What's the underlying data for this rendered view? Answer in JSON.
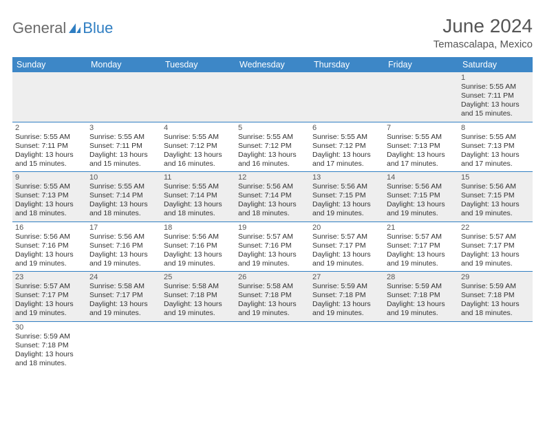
{
  "brand": {
    "name_a": "General",
    "name_b": "Blue",
    "accent": "#2f7ec2",
    "muted": "#6a6a6a"
  },
  "title": "June 2024",
  "subtitle": "Temascalapa, Mexico",
  "header_bg": "#3d87c7",
  "header_fg": "#ffffff",
  "row_even_bg": "#eeeeee",
  "row_odd_bg": "#ffffff",
  "divider_color": "#2f7ec2",
  "day_headers": [
    "Sunday",
    "Monday",
    "Tuesday",
    "Wednesday",
    "Thursday",
    "Friday",
    "Saturday"
  ],
  "weeks": [
    [
      null,
      null,
      null,
      null,
      null,
      null,
      {
        "n": 1,
        "sr": "5:55 AM",
        "ss": "7:11 PM",
        "dl": "13 hours and 15 minutes."
      }
    ],
    [
      {
        "n": 2,
        "sr": "5:55 AM",
        "ss": "7:11 PM",
        "dl": "13 hours and 15 minutes."
      },
      {
        "n": 3,
        "sr": "5:55 AM",
        "ss": "7:11 PM",
        "dl": "13 hours and 15 minutes."
      },
      {
        "n": 4,
        "sr": "5:55 AM",
        "ss": "7:12 PM",
        "dl": "13 hours and 16 minutes."
      },
      {
        "n": 5,
        "sr": "5:55 AM",
        "ss": "7:12 PM",
        "dl": "13 hours and 16 minutes."
      },
      {
        "n": 6,
        "sr": "5:55 AM",
        "ss": "7:12 PM",
        "dl": "13 hours and 17 minutes."
      },
      {
        "n": 7,
        "sr": "5:55 AM",
        "ss": "7:13 PM",
        "dl": "13 hours and 17 minutes."
      },
      {
        "n": 8,
        "sr": "5:55 AM",
        "ss": "7:13 PM",
        "dl": "13 hours and 17 minutes."
      }
    ],
    [
      {
        "n": 9,
        "sr": "5:55 AM",
        "ss": "7:13 PM",
        "dl": "13 hours and 18 minutes."
      },
      {
        "n": 10,
        "sr": "5:55 AM",
        "ss": "7:14 PM",
        "dl": "13 hours and 18 minutes."
      },
      {
        "n": 11,
        "sr": "5:55 AM",
        "ss": "7:14 PM",
        "dl": "13 hours and 18 minutes."
      },
      {
        "n": 12,
        "sr": "5:56 AM",
        "ss": "7:14 PM",
        "dl": "13 hours and 18 minutes."
      },
      {
        "n": 13,
        "sr": "5:56 AM",
        "ss": "7:15 PM",
        "dl": "13 hours and 19 minutes."
      },
      {
        "n": 14,
        "sr": "5:56 AM",
        "ss": "7:15 PM",
        "dl": "13 hours and 19 minutes."
      },
      {
        "n": 15,
        "sr": "5:56 AM",
        "ss": "7:15 PM",
        "dl": "13 hours and 19 minutes."
      }
    ],
    [
      {
        "n": 16,
        "sr": "5:56 AM",
        "ss": "7:16 PM",
        "dl": "13 hours and 19 minutes."
      },
      {
        "n": 17,
        "sr": "5:56 AM",
        "ss": "7:16 PM",
        "dl": "13 hours and 19 minutes."
      },
      {
        "n": 18,
        "sr": "5:56 AM",
        "ss": "7:16 PM",
        "dl": "13 hours and 19 minutes."
      },
      {
        "n": 19,
        "sr": "5:57 AM",
        "ss": "7:16 PM",
        "dl": "13 hours and 19 minutes."
      },
      {
        "n": 20,
        "sr": "5:57 AM",
        "ss": "7:17 PM",
        "dl": "13 hours and 19 minutes."
      },
      {
        "n": 21,
        "sr": "5:57 AM",
        "ss": "7:17 PM",
        "dl": "13 hours and 19 minutes."
      },
      {
        "n": 22,
        "sr": "5:57 AM",
        "ss": "7:17 PM",
        "dl": "13 hours and 19 minutes."
      }
    ],
    [
      {
        "n": 23,
        "sr": "5:57 AM",
        "ss": "7:17 PM",
        "dl": "13 hours and 19 minutes."
      },
      {
        "n": 24,
        "sr": "5:58 AM",
        "ss": "7:17 PM",
        "dl": "13 hours and 19 minutes."
      },
      {
        "n": 25,
        "sr": "5:58 AM",
        "ss": "7:18 PM",
        "dl": "13 hours and 19 minutes."
      },
      {
        "n": 26,
        "sr": "5:58 AM",
        "ss": "7:18 PM",
        "dl": "13 hours and 19 minutes."
      },
      {
        "n": 27,
        "sr": "5:59 AM",
        "ss": "7:18 PM",
        "dl": "13 hours and 19 minutes."
      },
      {
        "n": 28,
        "sr": "5:59 AM",
        "ss": "7:18 PM",
        "dl": "13 hours and 19 minutes."
      },
      {
        "n": 29,
        "sr": "5:59 AM",
        "ss": "7:18 PM",
        "dl": "13 hours and 18 minutes."
      }
    ],
    [
      {
        "n": 30,
        "sr": "5:59 AM",
        "ss": "7:18 PM",
        "dl": "13 hours and 18 minutes."
      },
      null,
      null,
      null,
      null,
      null,
      null
    ]
  ],
  "labels": {
    "sunrise": "Sunrise:",
    "sunset": "Sunset:",
    "daylight": "Daylight:"
  }
}
